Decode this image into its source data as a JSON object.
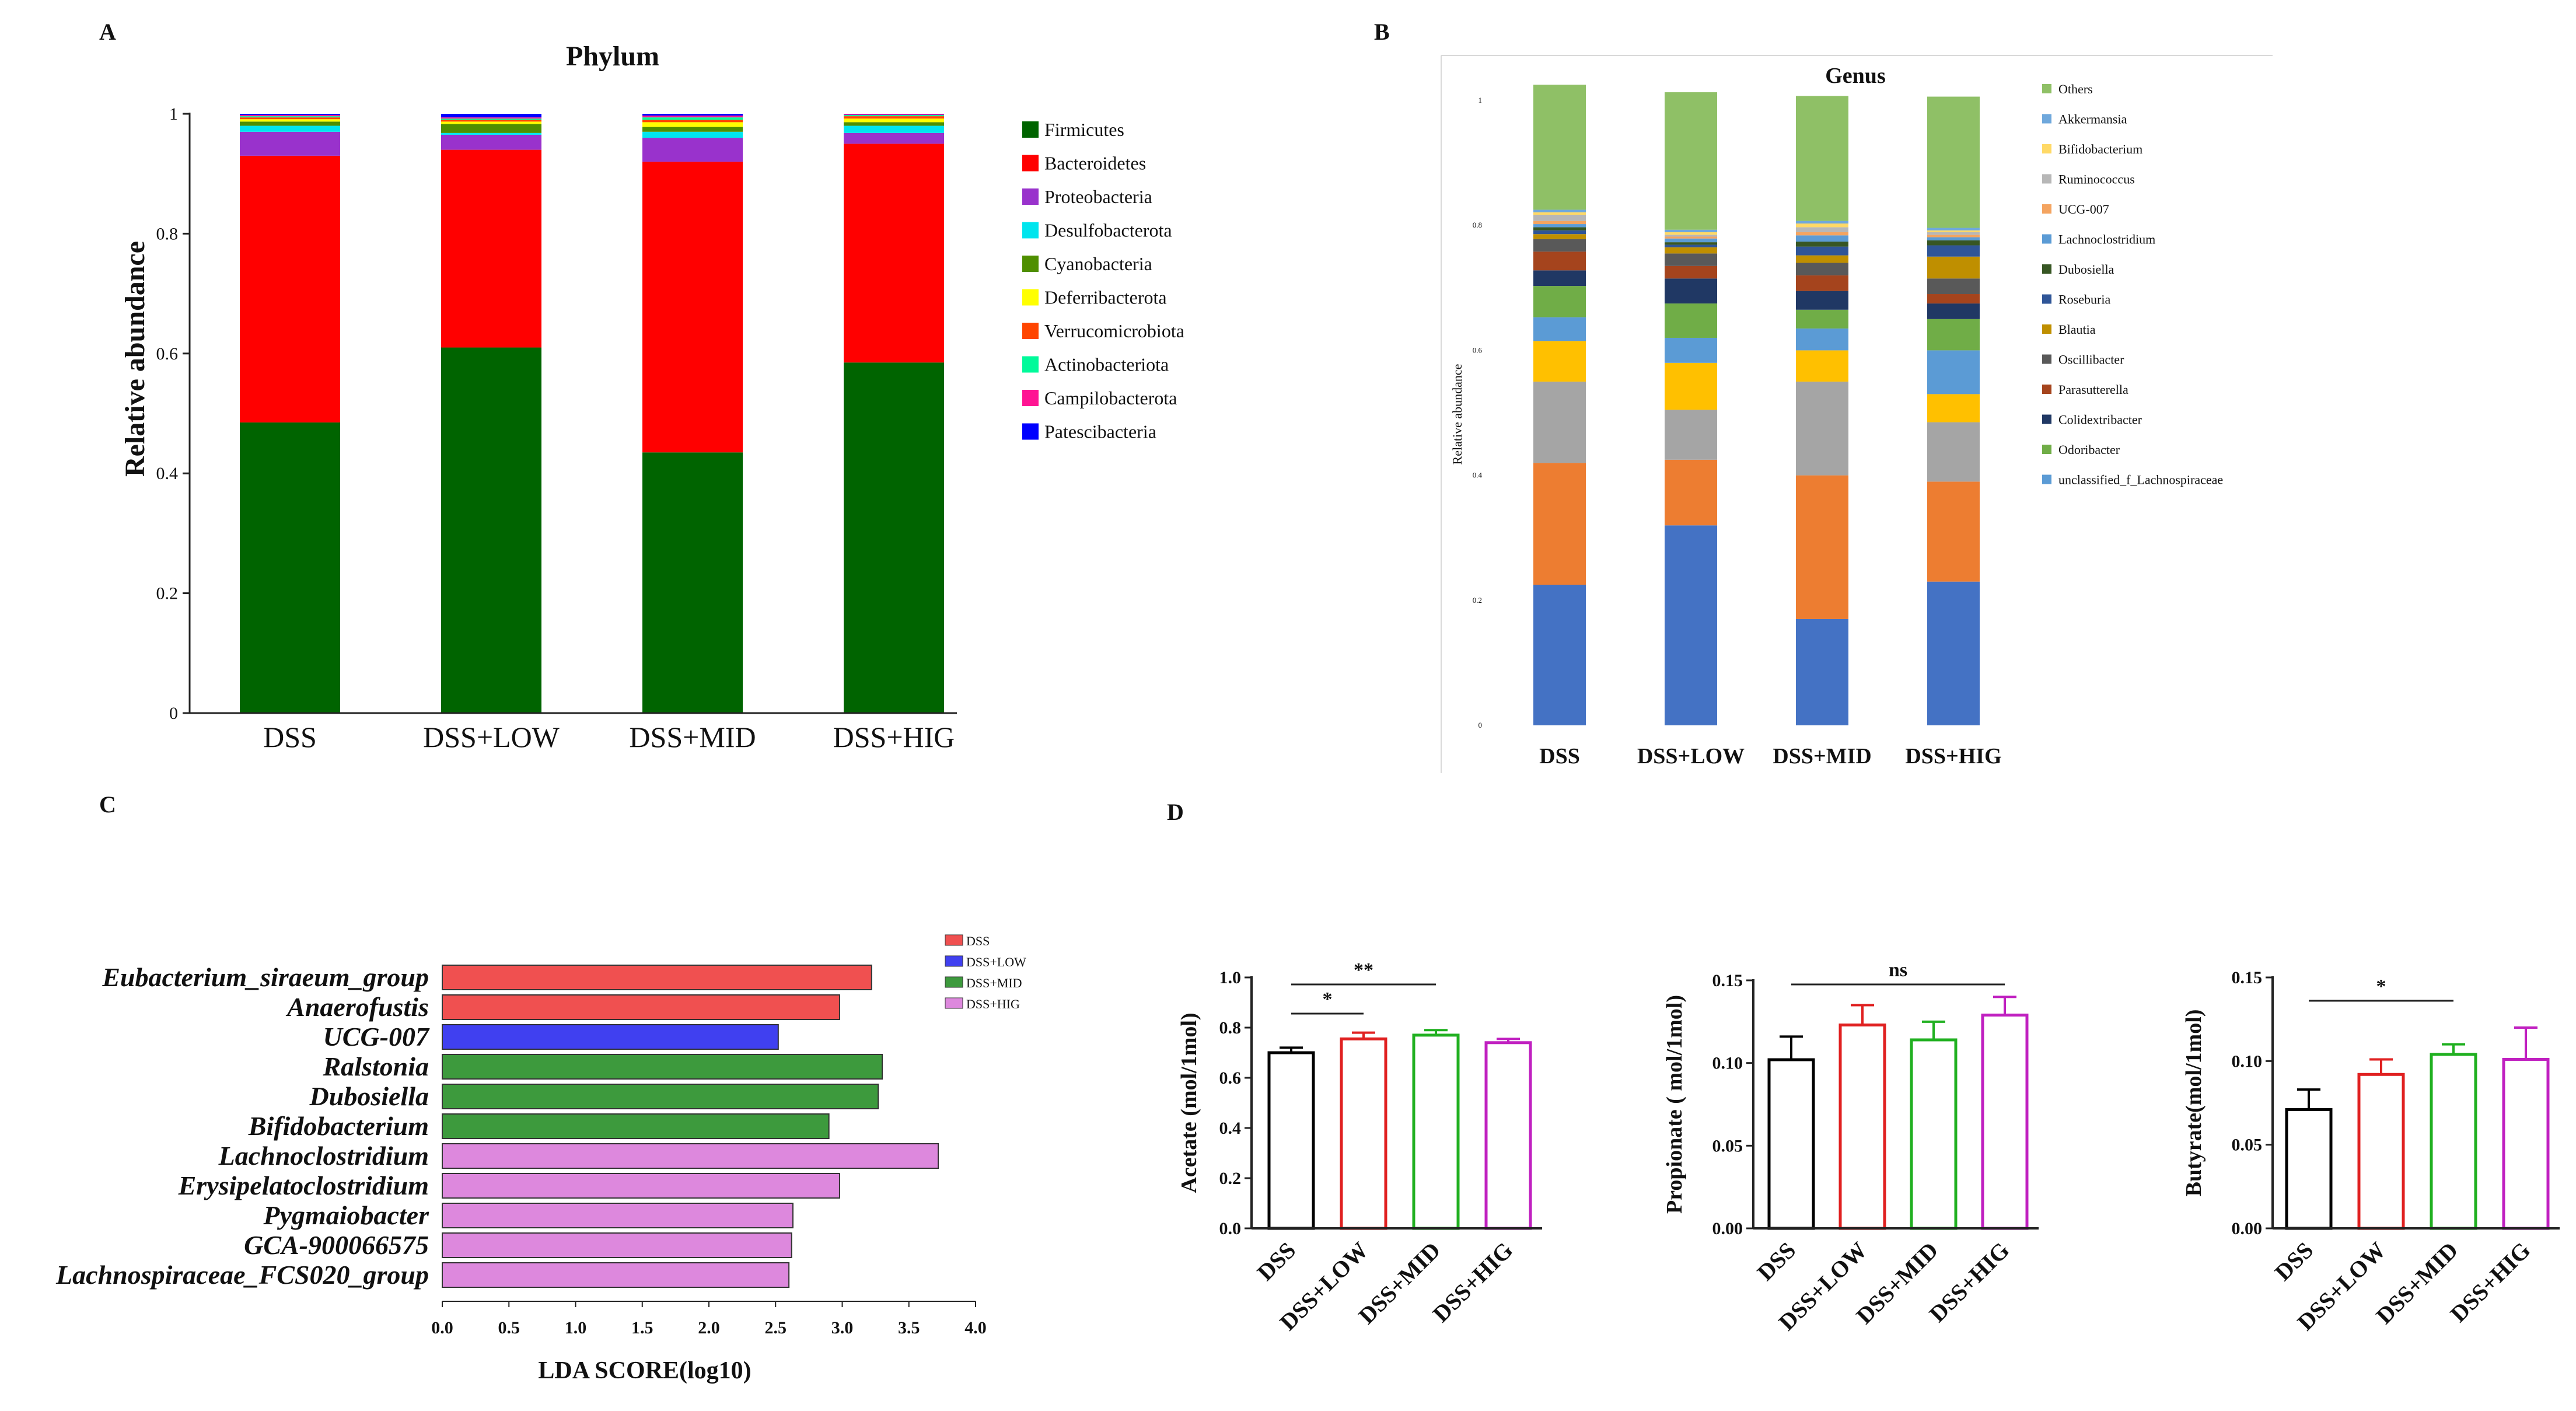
{
  "panels": {
    "A": "A",
    "B": "B",
    "C": "C",
    "D": "D"
  },
  "chart_data": [
    {
      "type": "bar",
      "stacked": true,
      "title": "Phylum",
      "ylabel": "Relative abundance",
      "xlabel": "",
      "ylim": [
        0,
        1
      ],
      "yticks": [
        "0",
        "0.2",
        "0.4",
        "0.6",
        "0.8",
        "1"
      ],
      "categories": [
        "DSS",
        "DSS+LOW",
        "DSS+MID",
        "DSS+HIG"
      ],
      "series": [
        {
          "name": "Firmicutes",
          "color": "#006400",
          "values": [
            0.485,
            0.61,
            0.435,
            0.585
          ]
        },
        {
          "name": "Bacteroidetes",
          "color": "#ff0000",
          "values": [
            0.445,
            0.33,
            0.485,
            0.365
          ]
        },
        {
          "name": "Proteobacteria",
          "color": "#9932cc",
          "values": [
            0.04,
            0.025,
            0.04,
            0.018
          ]
        },
        {
          "name": "Desulfobacterota",
          "color": "#00e5ee",
          "values": [
            0.01,
            0.003,
            0.01,
            0.012
          ]
        },
        {
          "name": "Cyanobacteria",
          "color": "#4f8f00",
          "values": [
            0.007,
            0.015,
            0.008,
            0.006
          ]
        },
        {
          "name": "Deferribacterota",
          "color": "#ffff00",
          "values": [
            0.004,
            0.004,
            0.008,
            0.006
          ]
        },
        {
          "name": "Verrucomicrobiota",
          "color": "#ff4500",
          "values": [
            0.003,
            0.003,
            0.004,
            0.004
          ]
        },
        {
          "name": "Actinobacteriota",
          "color": "#00fa9a",
          "values": [
            0.002,
            0.002,
            0.004,
            0.002
          ]
        },
        {
          "name": "Campilobacterota",
          "color": "#ff1493",
          "values": [
            0.002,
            0.002,
            0.003,
            0.001
          ]
        },
        {
          "name": "Patescibacteria",
          "color": "#0000ff",
          "values": [
            0.002,
            0.006,
            0.003,
            0.001
          ]
        }
      ]
    },
    {
      "type": "bar",
      "stacked": true,
      "title": "Genus",
      "ylabel": "Relative abundance",
      "xlabel": "",
      "ylim": [
        0,
        1
      ],
      "yticks": [
        "0",
        "0.2",
        "0.4",
        "0.6",
        "0.8",
        "1"
      ],
      "categories": [
        "DSS",
        "DSS+LOW",
        "DSS+MID",
        "DSS+HIG"
      ],
      "series": [
        {
          "name": "Others",
          "color": "#8fc066",
          "values": [
            0.2,
            0.22,
            0.2,
            0.21
          ]
        },
        {
          "name": "Akkermansia",
          "color": "#6fa8dc",
          "values": [
            0.004,
            0.004,
            0.004,
            0.004
          ]
        },
        {
          "name": "Bifidobacterium",
          "color": "#ffd966",
          "values": [
            0.004,
            0.004,
            0.006,
            0.003
          ]
        },
        {
          "name": "Ruminococcus",
          "color": "#b7b7b7",
          "values": [
            0.01,
            0.003,
            0.008,
            0.004
          ]
        },
        {
          "name": "UCG-007",
          "color": "#f4a460",
          "values": [
            0.005,
            0.003,
            0.005,
            0.004
          ]
        },
        {
          "name": "Lachnoclostridium",
          "color": "#5b9bd5",
          "values": [
            0.005,
            0.006,
            0.01,
            0.005
          ]
        },
        {
          "name": "Dubosiella",
          "color": "#375623",
          "values": [
            0.005,
            0.004,
            0.008,
            0.008
          ]
        },
        {
          "name": "Roseburia",
          "color": "#2f5597",
          "values": [
            0.006,
            0.004,
            0.014,
            0.018
          ]
        },
        {
          "name": "Blautia",
          "color": "#bf8f00",
          "values": [
            0.008,
            0.01,
            0.012,
            0.035
          ]
        },
        {
          "name": "Oscillibacter",
          "color": "#595959",
          "values": [
            0.02,
            0.02,
            0.02,
            0.025
          ]
        },
        {
          "name": "Parasutterella",
          "color": "#a5441d",
          "values": [
            0.03,
            0.02,
            0.025,
            0.015
          ]
        },
        {
          "name": "Colidextribacter",
          "color": "#203864",
          "values": [
            0.025,
            0.04,
            0.03,
            0.025
          ]
        },
        {
          "name": "Odoribacter",
          "color": "#70ad47",
          "values": [
            0.05,
            0.055,
            0.03,
            0.05
          ]
        },
        {
          "name": "unclassified_f_Lachnospiraceae",
          "color": "#5b9bd5",
          "values": [
            0.038,
            0.04,
            0.035,
            0.07
          ]
        },
        {
          "name": "",
          "color": "#ffc000",
          "values": [
            0.065,
            0.075,
            0.05,
            0.045
          ]
        },
        {
          "name": "",
          "color": "#a5a5a5",
          "values": [
            0.13,
            0.08,
            0.15,
            0.095
          ]
        },
        {
          "name": "",
          "color": "#ed7d31",
          "values": [
            0.195,
            0.105,
            0.23,
            0.16
          ]
        },
        {
          "name": "",
          "color": "#4472c4",
          "values": [
            0.225,
            0.32,
            0.17,
            0.23
          ]
        }
      ]
    },
    {
      "type": "bar",
      "orientation": "horizontal",
      "title": "",
      "xlabel": "LDA SCORE(log10)",
      "ylabel": "",
      "xlim": [
        0,
        4.0
      ],
      "xticks": [
        "0.0",
        "0.5",
        "1.0",
        "1.5",
        "2.0",
        "2.5",
        "3.0",
        "3.5",
        "4.0"
      ],
      "legend": [
        {
          "name": "DSS",
          "color": "#f05050"
        },
        {
          "name": "DSS+LOW",
          "color": "#4040f0"
        },
        {
          "name": "DSS+MID",
          "color": "#3d9a3d"
        },
        {
          "name": "DSS+HIG",
          "color": "#dd88dd"
        }
      ],
      "bars": [
        {
          "taxon": "Eubacterium_siraeum_group",
          "group": "DSS",
          "value": 3.22
        },
        {
          "taxon": "Anaerofustis",
          "group": "DSS",
          "value": 2.98
        },
        {
          "taxon": "UCG-007",
          "group": "DSS+LOW",
          "value": 2.52
        },
        {
          "taxon": "Ralstonia",
          "group": "DSS+MID",
          "value": 3.3
        },
        {
          "taxon": "Dubosiella",
          "group": "DSS+MID",
          "value": 3.27
        },
        {
          "taxon": "Bifidobacterium",
          "group": "DSS+MID",
          "value": 2.9
        },
        {
          "taxon": "Lachnoclostridium",
          "group": "DSS+HIG",
          "value": 3.72
        },
        {
          "taxon": "Erysipelatoclostridium",
          "group": "DSS+HIG",
          "value": 2.98
        },
        {
          "taxon": "Pygmaiobacter",
          "group": "DSS+HIG",
          "value": 2.63
        },
        {
          "taxon": "GCA-900066575",
          "group": "DSS+HIG",
          "value": 2.62
        },
        {
          "taxon": "Lachnospiraceae_FCS020_group",
          "group": "DSS+HIG",
          "value": 2.6
        }
      ]
    },
    {
      "type": "bar",
      "title": "",
      "ylabel": "Acetate (mol/1mol)",
      "xlabel": "",
      "ylim": [
        0,
        1.0
      ],
      "yticks": [
        "0.0",
        "0.2",
        "0.4",
        "0.6",
        "0.8",
        "1.0"
      ],
      "categories": [
        "DSS",
        "DSS+LOW",
        "DSS+MID",
        "DSS+HIG"
      ],
      "colors": [
        "#000000",
        "#e02020",
        "#20b020",
        "#c020c0"
      ],
      "values": [
        0.7,
        0.755,
        0.77,
        0.74
      ],
      "errors": [
        0.02,
        0.025,
        0.02,
        0.015
      ],
      "significance": [
        {
          "from": 0,
          "to": 1,
          "label": "*"
        },
        {
          "from": 0,
          "to": 2,
          "label": "**"
        }
      ]
    },
    {
      "type": "bar",
      "title": "",
      "ylabel": "Propionate ( mol/1mol)",
      "xlabel": "",
      "ylim": [
        0,
        0.15
      ],
      "yticks": [
        "0.00",
        "0.05",
        "0.10",
        "0.15"
      ],
      "categories": [
        "DSS",
        "DSS+LOW",
        "DSS+MID",
        "DSS+HIG"
      ],
      "colors": [
        "#000000",
        "#e02020",
        "#20b020",
        "#c020c0"
      ],
      "values": [
        0.102,
        0.123,
        0.114,
        0.129
      ],
      "errors": [
        0.014,
        0.012,
        0.011,
        0.011
      ],
      "significance": [
        {
          "from": 0,
          "to": 3,
          "label": "ns"
        }
      ]
    },
    {
      "type": "bar",
      "title": "",
      "ylabel": "Butyrate(mol/1mol)",
      "xlabel": "",
      "ylim": [
        0,
        0.15
      ],
      "yticks": [
        "0.00",
        "0.05",
        "0.10",
        "0.15"
      ],
      "categories": [
        "DSS",
        "DSS+LOW",
        "DSS+MID",
        "DSS+HIG"
      ],
      "colors": [
        "#000000",
        "#e02020",
        "#20b020",
        "#c020c0"
      ],
      "values": [
        0.071,
        0.092,
        0.104,
        0.101
      ],
      "errors": [
        0.012,
        0.009,
        0.006,
        0.019
      ],
      "significance": [
        {
          "from": 0,
          "to": 2,
          "label": "*"
        }
      ]
    }
  ]
}
